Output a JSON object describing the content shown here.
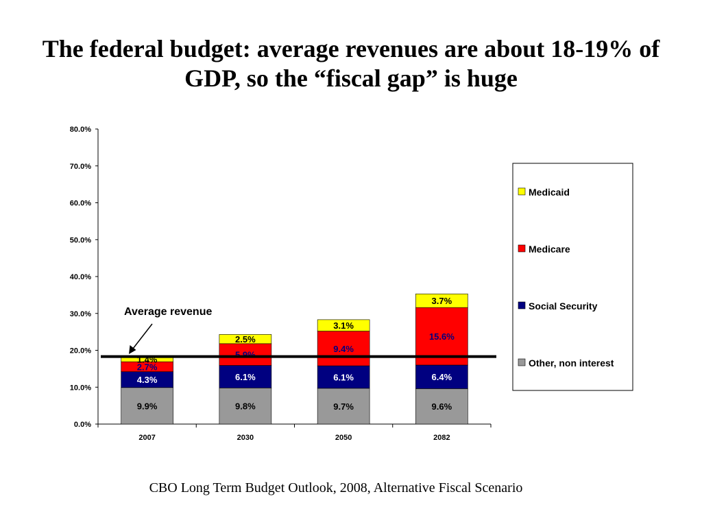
{
  "title": "The federal budget:  average revenues are about 18-19% of GDP, so the “fiscal gap” is huge",
  "source": "CBO Long Term Budget Outlook, 2008, Alternative Fiscal Scenario",
  "chart_data": {
    "type": "bar",
    "stacked": true,
    "categories": [
      "2007",
      "2030",
      "2050",
      "2082"
    ],
    "series": [
      {
        "name": "Other, non interest",
        "color": "#999999",
        "text_color": "#000000",
        "values": [
          9.9,
          9.8,
          9.7,
          9.6
        ],
        "labels": [
          "9.9%",
          "9.8%",
          "9.7%",
          "9.6%"
        ]
      },
      {
        "name": "Social Security",
        "color": "#000080",
        "text_color": "#ffffff",
        "values": [
          4.3,
          6.1,
          6.1,
          6.4
        ],
        "labels": [
          "4.3%",
          "6.1%",
          "6.1%",
          "6.4%"
        ]
      },
      {
        "name": "Medicare",
        "color": "#ff0000",
        "text_color": "#000080",
        "values": [
          2.7,
          5.9,
          9.4,
          15.6
        ],
        "labels": [
          "2.7%",
          "5.9%",
          "9.4%",
          "15.6%"
        ]
      },
      {
        "name": "Medicaid",
        "color": "#ffff00",
        "text_color": "#000000",
        "values": [
          1.4,
          2.5,
          3.1,
          3.7
        ],
        "labels": [
          "1.4%",
          "2.5%",
          "3.1%",
          "3.7%"
        ]
      }
    ],
    "legend_order": [
      "Medicaid",
      "Medicare",
      "Social Security",
      "Other, non interest"
    ],
    "yticks": [
      "0.0%",
      "10.0%",
      "20.0%",
      "30.0%",
      "40.0%",
      "50.0%",
      "60.0%",
      "70.0%",
      "80.0%"
    ],
    "ylim": [
      0,
      80
    ],
    "reference_line": {
      "value": 18.3,
      "label": "Average revenue"
    },
    "xlabel": "",
    "ylabel": "",
    "grid": false,
    "legend_position": "right"
  }
}
